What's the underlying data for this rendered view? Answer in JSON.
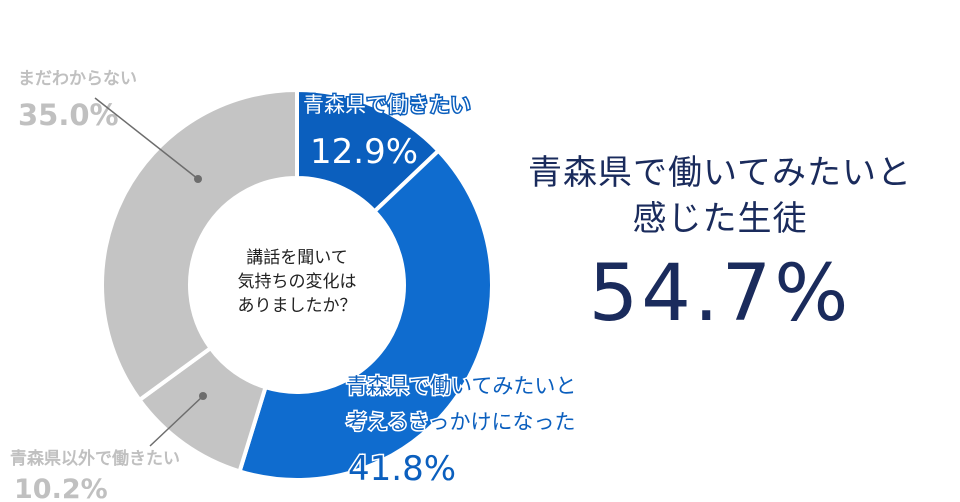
{
  "chart_data": {
    "type": "pie",
    "center_label": [
      "講話を聞いて",
      "気持ちの変化は",
      "ありましたか？"
    ],
    "slices": [
      {
        "name": "青森県で働きたい",
        "value": 12.9,
        "label": "12.9%",
        "color": "#0b5fbe"
      },
      {
        "name": "青森県で働いてみたいと考えるきっかけになった",
        "label_lines": [
          "青森県で働いてみたいと",
          "考えるきっかけになった"
        ],
        "value": 41.8,
        "label": "41.8%",
        "color": "#0f6ccf"
      },
      {
        "name": "青森県以外で働きたい",
        "value": 10.2,
        "label": "10.2%",
        "color": "#c4c4c4"
      },
      {
        "name": "まだわからない",
        "value": 35.0,
        "label": "35.0%",
        "color": "#c4c4c4"
      }
    ]
  },
  "summary": {
    "line1": "青森県で働いてみたいと",
    "line2": "感じた生徒",
    "value": "54.7%"
  },
  "colors": {
    "blue": "#0b5fbe",
    "gray": "#c4c4c4",
    "gray_text": "#c0c0c0",
    "navy": "#1a2b5c"
  }
}
